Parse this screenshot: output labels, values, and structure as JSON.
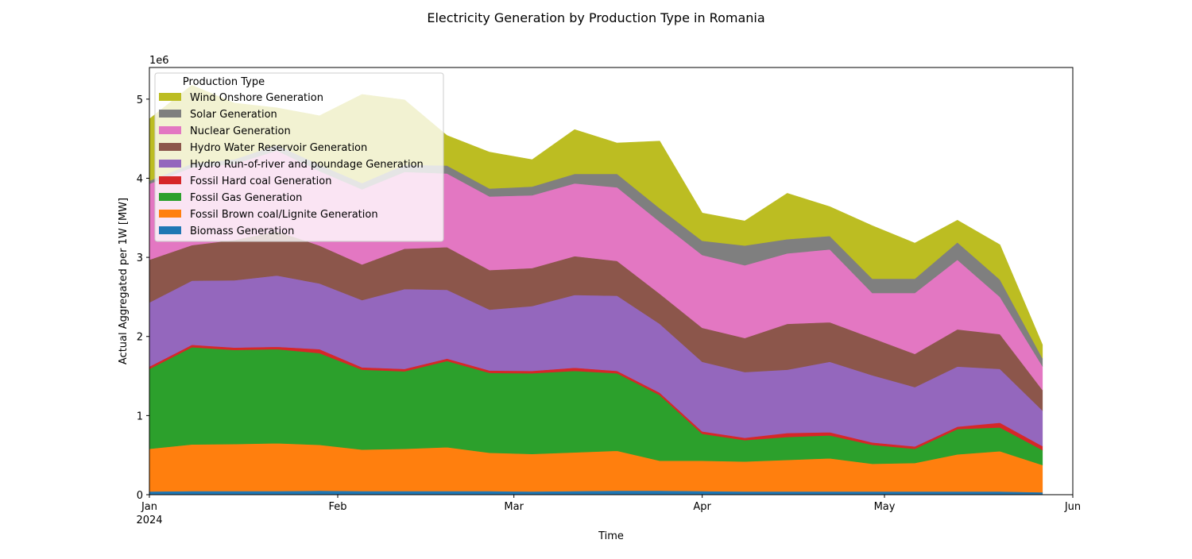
{
  "chart_data": {
    "type": "area",
    "stacked": true,
    "title": "Electricity Generation by Production Type in Romania",
    "xlabel": "Time",
    "ylabel": "Actual Aggregated per 1W [MW]",
    "y_offset_label": "1e6",
    "ylim": [
      0,
      5400000
    ],
    "y_ticks": [
      0,
      1,
      2,
      3,
      4,
      5
    ],
    "x_start": "2024-01-01",
    "x_end": "2024-06-01",
    "x_ticks": [
      {
        "date": "2024-01-01",
        "label": "Jan",
        "sublabel": "2024"
      },
      {
        "date": "2024-02-01",
        "label": "Feb",
        "sublabel": ""
      },
      {
        "date": "2024-03-01",
        "label": "Mar",
        "sublabel": ""
      },
      {
        "date": "2024-04-01",
        "label": "Apr",
        "sublabel": ""
      },
      {
        "date": "2024-05-01",
        "label": "May",
        "sublabel": ""
      },
      {
        "date": "2024-06-01",
        "label": "Jun",
        "sublabel": ""
      }
    ],
    "x": [
      "2024-01-01",
      "2024-01-08",
      "2024-01-15",
      "2024-01-22",
      "2024-01-29",
      "2024-02-05",
      "2024-02-12",
      "2024-02-19",
      "2024-02-26",
      "2024-03-04",
      "2024-03-11",
      "2024-03-18",
      "2024-03-25",
      "2024-04-01",
      "2024-04-08",
      "2024-04-15",
      "2024-04-22",
      "2024-04-29",
      "2024-05-06",
      "2024-05-13",
      "2024-05-20",
      "2024-05-27"
    ],
    "legend": {
      "title": "Production Type",
      "position": "upper left"
    },
    "grid": false,
    "series": [
      {
        "name": "Biomass Generation",
        "color": "#1f77b4",
        "values": [
          40000,
          45000,
          45000,
          45000,
          50000,
          45000,
          45000,
          45000,
          45000,
          40000,
          45000,
          50000,
          50000,
          45000,
          40000,
          40000,
          40000,
          40000,
          40000,
          40000,
          40000,
          30000
        ]
      },
      {
        "name": "Fossil Brown coal/Lignite Generation",
        "color": "#ff7f0e",
        "values": [
          540000,
          590000,
          595000,
          605000,
          580000,
          525000,
          535000,
          555000,
          485000,
          475000,
          490000,
          505000,
          380000,
          385000,
          380000,
          400000,
          420000,
          350000,
          360000,
          470000,
          510000,
          345000
        ]
      },
      {
        "name": "Fossil Gas Generation",
        "color": "#2ca02c",
        "values": [
          1010000,
          1230000,
          1190000,
          1190000,
          1160000,
          1010000,
          980000,
          1090000,
          1010000,
          1020000,
          1030000,
          980000,
          830000,
          340000,
          270000,
          290000,
          290000,
          240000,
          180000,
          320000,
          300000,
          190000
        ]
      },
      {
        "name": "Fossil Hard coal Generation",
        "color": "#d62728",
        "values": [
          30000,
          30000,
          30000,
          30000,
          50000,
          30000,
          30000,
          30000,
          30000,
          30000,
          40000,
          30000,
          30000,
          30000,
          30000,
          50000,
          40000,
          30000,
          30000,
          30000,
          60000,
          50000
        ]
      },
      {
        "name": "Hydro Run-of-river and poundage Generation",
        "color": "#9467bd",
        "values": [
          810000,
          810000,
          850000,
          900000,
          830000,
          850000,
          1010000,
          870000,
          770000,
          820000,
          920000,
          950000,
          870000,
          880000,
          830000,
          800000,
          890000,
          850000,
          750000,
          760000,
          680000,
          450000
        ]
      },
      {
        "name": "Hydro Water Reservoir Generation",
        "color": "#8c564b",
        "values": [
          540000,
          450000,
          510000,
          560000,
          480000,
          450000,
          510000,
          540000,
          500000,
          480000,
          490000,
          440000,
          380000,
          430000,
          430000,
          580000,
          500000,
          470000,
          420000,
          470000,
          440000,
          260000
        ]
      },
      {
        "name": "Nuclear Generation",
        "color": "#e377c2",
        "values": [
          960000,
          980000,
          960000,
          1020000,
          940000,
          950000,
          970000,
          930000,
          930000,
          920000,
          920000,
          930000,
          910000,
          920000,
          920000,
          890000,
          920000,
          570000,
          770000,
          880000,
          470000,
          300000
        ]
      },
      {
        "name": "Solar Generation",
        "color": "#7f7f7f",
        "values": [
          40000,
          50000,
          60000,
          70000,
          80000,
          80000,
          90000,
          100000,
          100000,
          110000,
          120000,
          170000,
          170000,
          180000,
          250000,
          180000,
          170000,
          180000,
          180000,
          220000,
          220000,
          100000
        ]
      },
      {
        "name": "Wind Onshore Generation",
        "color": "#bcbd22",
        "values": [
          780000,
          990000,
          710000,
          470000,
          620000,
          1120000,
          820000,
          380000,
          460000,
          340000,
          560000,
          390000,
          850000,
          350000,
          310000,
          580000,
          370000,
          670000,
          450000,
          280000,
          440000,
          170000
        ]
      }
    ]
  }
}
